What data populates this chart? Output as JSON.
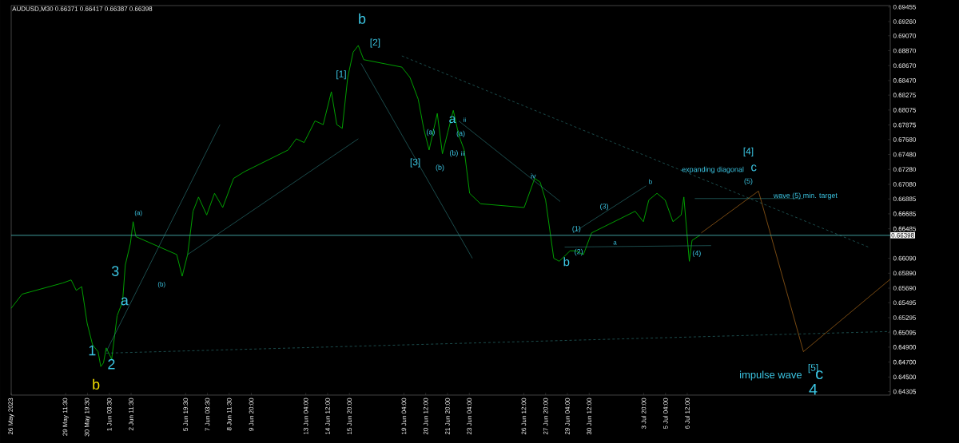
{
  "chart_data": {
    "type": "line",
    "title": "AUDUSD,M30  0.66371 0.66417 0.66387 0.66398",
    "xlim": [
      "2023-05-26T03:30",
      "2023-07-18T22:00"
    ],
    "ylim": [
      0.64258,
      0.69474
    ],
    "xticks": [
      {
        "value": "2023-05-26T03:30",
        "label": "26 May 2023"
      },
      {
        "value": "2023-05-29T11:30",
        "label": "29 May 11:30"
      },
      {
        "value": "2023-05-30T19:30",
        "label": "30 May 19:30"
      },
      {
        "value": "2023-06-01T03:30",
        "label": "1 Jun 03:30"
      },
      {
        "value": "2023-06-02T11:30",
        "label": "2 Jun 11:30"
      },
      {
        "value": "2023-06-05T19:30",
        "label": "5 Jun 19:30"
      },
      {
        "value": "2023-06-07T03:30",
        "label": "7 Jun 03:30"
      },
      {
        "value": "2023-06-08T11:30",
        "label": "8 Jun 11:30"
      },
      {
        "value": "2023-06-09T20:00",
        "label": "9 Jun 20:00"
      },
      {
        "value": "2023-06-13T04:00",
        "label": "13 Jun 04:00"
      },
      {
        "value": "2023-06-14T12:00",
        "label": "14 Jun 12:00"
      },
      {
        "value": "2023-06-15T20:00",
        "label": "15 Jun 20:00"
      },
      {
        "value": "2023-06-19T04:00",
        "label": "19 Jun 04:00"
      },
      {
        "value": "2023-06-20T12:00",
        "label": "20 Jun 12:00"
      },
      {
        "value": "2023-06-21T20:00",
        "label": "21 Jun 20:00"
      },
      {
        "value": "2023-06-23T04:00",
        "label": "23 Jun 04:00"
      },
      {
        "value": "2023-06-26T12:00",
        "label": "26 Jun 12:00"
      },
      {
        "value": "2023-06-27T20:00",
        "label": "27 Jun 20:00"
      },
      {
        "value": "2023-06-29T04:00",
        "label": "29 Jun 04:00"
      },
      {
        "value": "2023-06-30T12:00",
        "label": "30 Jun 12:00"
      },
      {
        "value": "2023-07-03T20:00",
        "label": "3 Jul 20:00"
      },
      {
        "value": "2023-07-05T04:00",
        "label": "5 Jul 04:00"
      },
      {
        "value": "2023-07-06T12:00",
        "label": "6 Jul 12:00"
      }
    ],
    "yticks": [
      {
        "value": 0.69455,
        "label": "0.69455"
      },
      {
        "value": 0.6926,
        "label": "0.69260"
      },
      {
        "value": 0.6907,
        "label": "0.69070"
      },
      {
        "value": 0.6887,
        "label": "0.68870"
      },
      {
        "value": 0.6867,
        "label": "0.68670"
      },
      {
        "value": 0.6847,
        "label": "0.68470"
      },
      {
        "value": 0.68275,
        "label": "0.68275"
      },
      {
        "value": 0.68075,
        "label": "0.68075"
      },
      {
        "value": 0.67875,
        "label": "0.67875"
      },
      {
        "value": 0.6768,
        "label": "0.67680"
      },
      {
        "value": 0.6748,
        "label": "0.67480"
      },
      {
        "value": 0.6728,
        "label": "0.67280"
      },
      {
        "value": 0.6708,
        "label": "0.67080"
      },
      {
        "value": 0.66885,
        "label": "0.66885"
      },
      {
        "value": 0.66685,
        "label": "0.66685"
      },
      {
        "value": 0.66485,
        "label": "0.66485"
      },
      {
        "value": 0.6609,
        "label": "0.66090"
      },
      {
        "value": 0.6589,
        "label": "0.65890"
      },
      {
        "value": 0.6569,
        "label": "0.65690"
      },
      {
        "value": 0.65495,
        "label": "0.65495"
      },
      {
        "value": 0.65295,
        "label": "0.65295"
      },
      {
        "value": 0.65095,
        "label": "0.65095"
      },
      {
        "value": 0.649,
        "label": "0.64900"
      },
      {
        "value": 0.647,
        "label": "0.64700"
      },
      {
        "value": 0.645,
        "label": "0.64500"
      },
      {
        "value": 0.64305,
        "label": "0.64305"
      }
    ],
    "ref_lines": [
      {
        "axis": "y",
        "value": 0.66398,
        "label": "0.66398",
        "color": "#3f9a9a"
      }
    ],
    "series": [
      {
        "color": "#00b000",
        "x": [
          "2023-05-26T03:30",
          "2023-05-26T19:30",
          "2023-05-29T07:30",
          "2023-05-29T19:30",
          "2023-05-30T03:00",
          "2023-05-30T11:00",
          "2023-05-30T19:00",
          "2023-05-31T03:00",
          "2023-05-31T11:00",
          "2023-05-31T15:00",
          "2023-05-31T19:00",
          "2023-05-31T23:00",
          "2023-06-01T07:00",
          "2023-06-01T15:00",
          "2023-06-01T23:00",
          "2023-06-02T03:00",
          "2023-06-02T10:30",
          "2023-06-02T14:30",
          "2023-06-02T18:30",
          "2023-06-05T06:30",
          "2023-06-05T14:30",
          "2023-06-05T22:30",
          "2023-06-06T06:30",
          "2023-06-06T14:30",
          "2023-06-07T02:30",
          "2023-06-07T14:00",
          "2023-06-08T02:00",
          "2023-06-08T18:00",
          "2023-06-09T10:00",
          "2023-06-12T02:00",
          "2023-06-12T14:00",
          "2023-06-13T01:30",
          "2023-06-13T17:30",
          "2023-06-14T05:30",
          "2023-06-14T17:30",
          "2023-06-15T01:30",
          "2023-06-15T09:30",
          "2023-06-15T17:30",
          "2023-06-16T01:30",
          "2023-06-16T09:00",
          "2023-06-16T17:00",
          "2023-06-19T01:00",
          "2023-06-19T13:00",
          "2023-06-20T01:00",
          "2023-06-20T09:00",
          "2023-06-20T17:00",
          "2023-06-21T05:00",
          "2023-06-21T12:30",
          "2023-06-21T20:30",
          "2023-06-22T04:30",
          "2023-06-22T12:30",
          "2023-06-22T20:30",
          "2023-06-23T04:30",
          "2023-06-23T20:30",
          "2023-06-26T12:30",
          "2023-06-27T04:00",
          "2023-06-27T12:00",
          "2023-06-27T20:00",
          "2023-06-28T08:00",
          "2023-06-28T16:00",
          "2023-06-29T08:00",
          "2023-06-29T16:00",
          "2023-06-30T03:30",
          "2023-06-30T15:30",
          "2023-07-03T07:30",
          "2023-07-03T19:30",
          "2023-07-04T03:30",
          "2023-07-04T15:30",
          "2023-07-05T03:30",
          "2023-07-05T15:00",
          "2023-07-06T03:00",
          "2023-07-06T07:00",
          "2023-07-06T15:00",
          "2023-07-06T19:00",
          "2023-07-07T07:00"
        ],
        "values": [
          0.6542,
          0.6561,
          0.6576,
          0.658,
          0.6566,
          0.6571,
          0.6522,
          0.6493,
          0.6484,
          0.6464,
          0.6469,
          0.6489,
          0.6474,
          0.6532,
          0.6551,
          0.66,
          0.6629,
          0.6658,
          0.6638,
          0.6614,
          0.6585,
          0.6614,
          0.6672,
          0.6691,
          0.6667,
          0.6696,
          0.6677,
          0.6716,
          0.6725,
          0.6754,
          0.6769,
          0.6764,
          0.6793,
          0.6788,
          0.6832,
          0.6788,
          0.6783,
          0.6851,
          0.6885,
          0.6894,
          0.6875,
          0.6865,
          0.6851,
          0.6822,
          0.6783,
          0.6754,
          0.6803,
          0.6749,
          0.6778,
          0.6807,
          0.6774,
          0.6754,
          0.6696,
          0.6682,
          0.6677,
          0.6716,
          0.6711,
          0.6687,
          0.6609,
          0.6605,
          0.6619,
          0.6619,
          0.6614,
          0.6643,
          0.6672,
          0.6658,
          0.6687,
          0.6696,
          0.6687,
          0.6658,
          0.6667,
          0.6691,
          0.6605,
          0.6633,
          0.664
        ]
      },
      {
        "color": "#2e7d7d",
        "line_style": "dashed",
        "x": [
          "2023-06-19T01:00",
          "2023-07-17T14:00"
        ],
        "values": [
          0.688,
          0.6624
        ]
      },
      {
        "color": "#2e7d7d",
        "line_style": "dashed",
        "x": [
          "2023-05-31T23:00",
          "2023-07-18T22:00"
        ],
        "values": [
          0.6482,
          0.6511
        ]
      },
      {
        "color": "#2e7d7d",
        "x": [
          "2023-05-31T23:00",
          "2023-06-07T22:00"
        ],
        "values": [
          0.6484,
          0.6788
        ]
      },
      {
        "color": "#2e7d7d",
        "x": [
          "2023-06-05T22:30",
          "2023-06-16T09:00"
        ],
        "values": [
          0.6614,
          0.6769
        ]
      },
      {
        "color": "#2e7d7d",
        "x": [
          "2023-06-16T13:00",
          "2023-06-23T08:30"
        ],
        "values": [
          0.687,
          0.6609
        ]
      },
      {
        "color": "#2e7d7d",
        "x": [
          "2023-06-22T12:30",
          "2023-06-28T17:30"
        ],
        "values": [
          0.6793,
          0.6685
        ]
      },
      {
        "color": "#2e7d7d",
        "x": [
          "2023-06-29T12:00",
          "2023-07-03T23:30"
        ],
        "values": [
          0.6643,
          0.6706
        ]
      },
      {
        "color": "#2e7d7d",
        "x": [
          "2023-06-29T00:00",
          "2023-07-07T23:00"
        ],
        "values": [
          0.6624,
          0.6626
        ]
      },
      {
        "color": "#2e7d7d",
        "x": [
          "2023-07-06T23:00",
          "2023-07-13T14:30"
        ],
        "values": [
          0.6689,
          0.6689
        ]
      },
      {
        "color": "#c87a1e",
        "x": [
          "2023-07-07T08:30",
          "2023-07-10T20:30",
          "2023-07-13T14:30",
          "2023-07-18T22:00"
        ],
        "values": [
          0.6643,
          0.6699,
          0.6484,
          0.6581
        ]
      }
    ],
    "annotations": [
      "b",
      "1",
      "2",
      "a",
      "3",
      "(a)",
      "(b)",
      "b",
      "[1]",
      "[2]",
      "[3]",
      "(b)",
      "(a)",
      "a",
      "(a)",
      "(b)",
      "iii",
      "ii",
      "iv",
      "(1)",
      "(2)",
      "b",
      "(3)",
      "a",
      "b",
      "(4)",
      "(5)",
      "[4]",
      "expanding diagonal",
      "c",
      "wave (5) min. target",
      "[5]",
      "impulse wave",
      "c",
      "4"
    ]
  }
}
